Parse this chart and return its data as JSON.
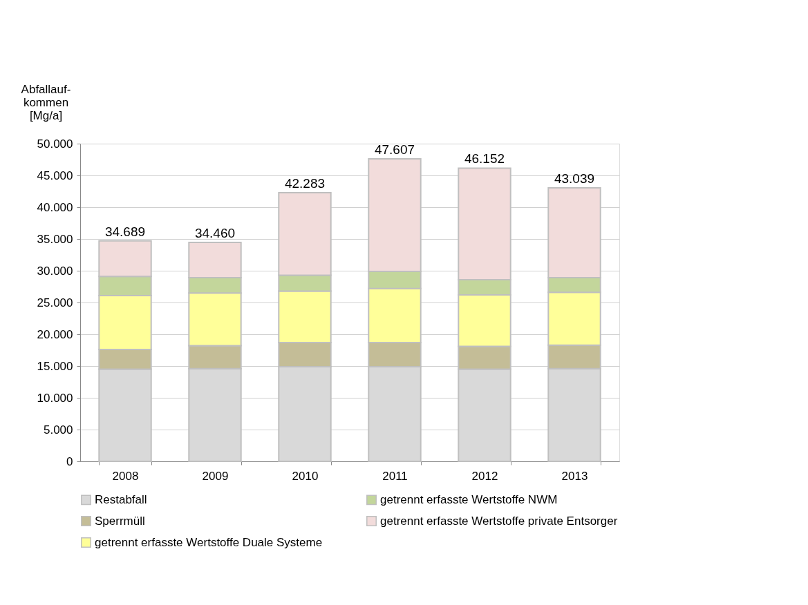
{
  "chart_data": {
    "type": "bar",
    "stacked": true,
    "ylabel": "Abfallauf-\nkommen\n[Mg/a]",
    "categories": [
      "2008",
      "2009",
      "2010",
      "2011",
      "2012",
      "2013"
    ],
    "series": [
      {
        "name": "Restabfall",
        "color": "#d9d9d9",
        "values": [
          14500,
          14600,
          14900,
          14900,
          14500,
          14600
        ]
      },
      {
        "name": "Sperrmüll",
        "color": "#c4bd97",
        "values": [
          3100,
          3600,
          3800,
          3800,
          3600,
          3700
        ]
      },
      {
        "name": "getrennt erfasste Wertstoffe Duale Systeme",
        "color": "#ffff99",
        "values": [
          8500,
          8300,
          8100,
          8500,
          8100,
          8300
        ]
      },
      {
        "name": "getrennt erfasste Wertstoffe NWM",
        "color": "#c3d69b",
        "values": [
          3000,
          2400,
          2500,
          2700,
          2400,
          2300
        ]
      },
      {
        "name": "getrennt erfasste Wertstoffe private Entsorger",
        "color": "#f2dcdb",
        "values": [
          5589,
          5560,
          12983,
          17707,
          17552,
          14139
        ]
      }
    ],
    "totals": [
      "34.689",
      "34.460",
      "42.283",
      "47.607",
      "46.152",
      "43.039"
    ],
    "ylim": [
      0,
      50000
    ],
    "yticks": [
      {
        "value": 0,
        "label": "0"
      },
      {
        "value": 5000,
        "label": "5.000"
      },
      {
        "value": 10000,
        "label": "10.000"
      },
      {
        "value": 15000,
        "label": "15.000"
      },
      {
        "value": 20000,
        "label": "20.000"
      },
      {
        "value": 25000,
        "label": "25.000"
      },
      {
        "value": 30000,
        "label": "30.000"
      },
      {
        "value": 35000,
        "label": "35.000"
      },
      {
        "value": 40000,
        "label": "40.000"
      },
      {
        "value": 45000,
        "label": "45.000"
      },
      {
        "value": 50000,
        "label": "50.000"
      }
    ],
    "grid": "y",
    "legend": "bottom"
  }
}
